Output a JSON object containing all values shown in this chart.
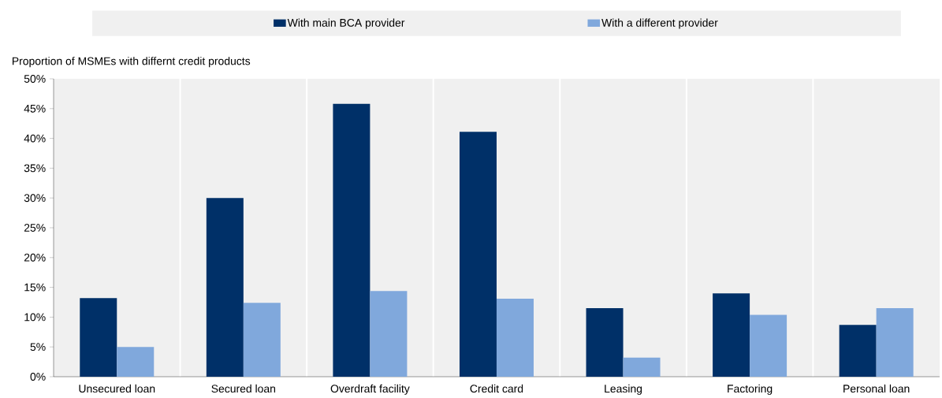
{
  "chart_data": {
    "type": "bar",
    "ylabel": "Proportion of MSMEs with differnt credit products",
    "categories": [
      "Unsecured  loan",
      "Secured loan",
      "Overdraft facility",
      "Credit card",
      "Leasing",
      "Factoring",
      "Personal loan"
    ],
    "series": [
      {
        "name": "With main BCA provider",
        "color": "#003068",
        "values": [
          13.2,
          30.0,
          45.8,
          41.1,
          11.5,
          14.0,
          8.7
        ]
      },
      {
        "name": "With a different provider",
        "color": "#80a8dc",
        "values": [
          5.0,
          12.4,
          14.4,
          13.1,
          3.2,
          10.4,
          11.5
        ]
      }
    ],
    "ylim": [
      0,
      50
    ],
    "yticks": [
      {
        "value": 0,
        "label": "0%"
      },
      {
        "value": 5,
        "label": "5%"
      },
      {
        "value": 10,
        "label": "10%"
      },
      {
        "value": 15,
        "label": "15%"
      },
      {
        "value": 20,
        "label": "20%"
      },
      {
        "value": 25,
        "label": "25%"
      },
      {
        "value": 30,
        "label": "30%"
      },
      {
        "value": 35,
        "label": "35%"
      },
      {
        "value": 40,
        "label": "40%"
      },
      {
        "value": 45,
        "label": "45%"
      },
      {
        "value": 50,
        "label": "50%"
      }
    ],
    "grid": "x",
    "legend": "top"
  }
}
